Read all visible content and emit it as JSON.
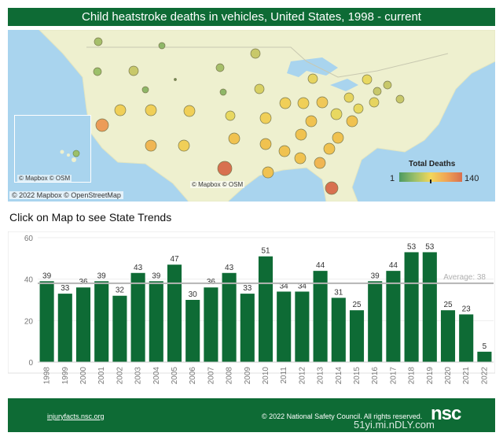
{
  "header": {
    "title": "Child heatstroke deaths in vehicles, United States, 1998 - current"
  },
  "map": {
    "attribution_inset": "© Mapbox © OSM",
    "attribution_main": "© Mapbox © OSM",
    "copyright": "© 2022 Mapbox © OpenStreetMap",
    "legend": {
      "title": "Total Deaths",
      "min": "1",
      "max": "140"
    },
    "colors": {
      "low": "#4c9a62",
      "mid": "#f2d75a",
      "high": "#d8704f",
      "water": "#a9d4ee",
      "land": "#eef0cf"
    }
  },
  "subtitle": "Click on Map to see State Trends",
  "chart_data": {
    "type": "bar",
    "categories": [
      "1998",
      "1999",
      "2000",
      "2001",
      "2002",
      "2003",
      "2004",
      "2005",
      "2006",
      "2007",
      "2008",
      "2009",
      "2010",
      "2011",
      "2012",
      "2013",
      "2014",
      "2015",
      "2016",
      "2017",
      "2018",
      "2019",
      "2020",
      "2021",
      "2022"
    ],
    "values": [
      39,
      33,
      36,
      39,
      32,
      43,
      39,
      47,
      30,
      36,
      43,
      33,
      51,
      34,
      34,
      44,
      31,
      25,
      39,
      44,
      53,
      53,
      25,
      23,
      5
    ],
    "title": "",
    "xlabel": "",
    "ylabel": "",
    "ylim": [
      0,
      60
    ],
    "yticks": [
      0,
      20,
      40,
      60
    ],
    "average": {
      "label": "Average: 38",
      "value": 38
    },
    "bar_color": "#0e6b35",
    "grid": true
  },
  "footer": {
    "url": "injuryfacts.nsc.org",
    "copyright": "© 2022 National Safety Council. All rights reserved.",
    "logo": "nsc"
  },
  "watermark": "51yi.mi.nDLY.com"
}
